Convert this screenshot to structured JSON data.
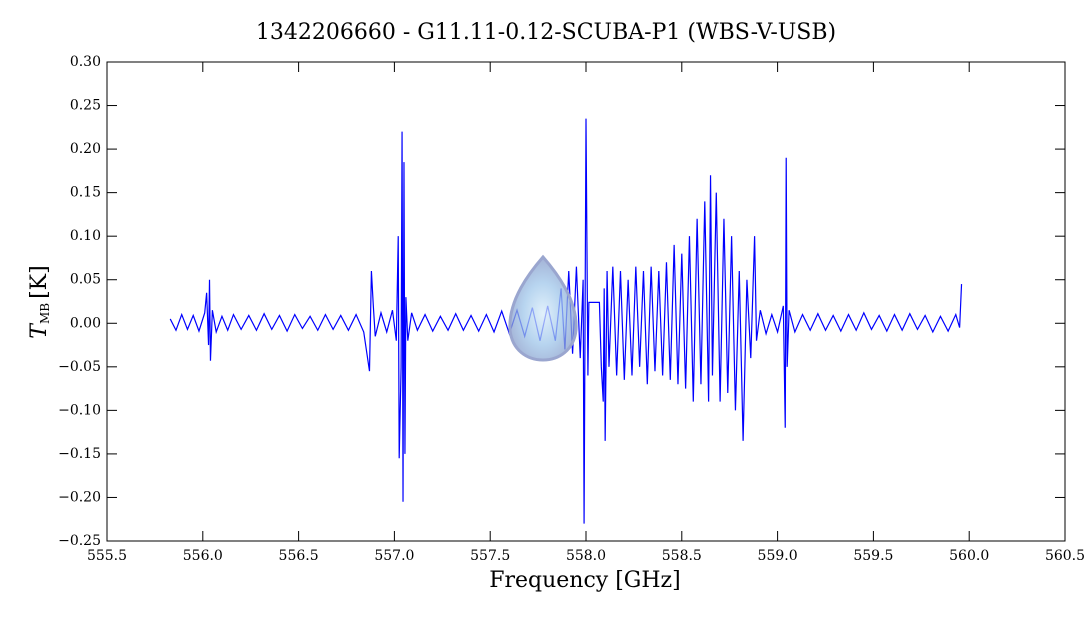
{
  "chart_data": {
    "type": "line",
    "title": "1342206660 - G11.11-0.12-SCUBA-P1 (WBS-V-USB)",
    "xlabel": "Frequency [GHz]",
    "ylabel": {
      "symbol": "T",
      "subscript": "MB",
      "unit": "[K]"
    },
    "color": "#0000ff",
    "xlim": [
      555.5,
      560.5
    ],
    "ylim": [
      -0.25,
      0.3
    ],
    "xticks": [
      555.5,
      {
        "value": 556,
        "label": "556.0"
      },
      556.5,
      {
        "value": 557,
        "label": "557.0"
      },
      557.5,
      {
        "value": 558,
        "label": "558.0"
      },
      558.5,
      {
        "value": 559,
        "label": "559.0"
      },
      559.5,
      {
        "value": 560,
        "label": "560.0"
      },
      560.5
    ],
    "yticks": [
      {
        "value": -0.25,
        "label": "−0.25"
      },
      {
        "value": -0.2,
        "label": "−0.20"
      },
      {
        "value": -0.15,
        "label": "−0.15"
      },
      {
        "value": -0.1,
        "label": "−0.10"
      },
      {
        "value": -0.05,
        "label": "−0.05"
      },
      {
        "value": 0,
        "label": "0.00"
      },
      0.05,
      {
        "value": 0.1,
        "label": "0.10"
      },
      0.15,
      {
        "value": 0.2,
        "label": "0.20"
      },
      0.25,
      {
        "value": 0.3,
        "label": "0.30"
      }
    ],
    "x": [
      555.83,
      555.86,
      555.89,
      555.92,
      555.95,
      555.98,
      556.01,
      556.02,
      556.03,
      556.035,
      556.04,
      556.05,
      556.07,
      556.1,
      556.13,
      556.16,
      556.2,
      556.24,
      556.28,
      556.32,
      556.36,
      556.4,
      556.44,
      556.48,
      556.52,
      556.56,
      556.6,
      556.64,
      556.68,
      556.72,
      556.76,
      556.8,
      556.84,
      556.87,
      556.88,
      556.89,
      556.9,
      556.93,
      556.96,
      556.99,
      557.01,
      557.02,
      557.025,
      557.035,
      557.04,
      557.045,
      557.05,
      557.055,
      557.06,
      557.07,
      557.09,
      557.12,
      557.16,
      557.2,
      557.24,
      557.28,
      557.32,
      557.36,
      557.4,
      557.44,
      557.48,
      557.52,
      557.56,
      557.6,
      557.64,
      557.68,
      557.72,
      557.76,
      557.8,
      557.84,
      557.87,
      557.89,
      557.91,
      557.93,
      557.95,
      557.97,
      557.985,
      557.99,
      558.0,
      558.01,
      558.015,
      558.07,
      558.08,
      558.09,
      558.095,
      558.1,
      558.11,
      558.12,
      558.14,
      558.16,
      558.18,
      558.2,
      558.22,
      558.24,
      558.26,
      558.28,
      558.3,
      558.32,
      558.34,
      558.36,
      558.38,
      558.4,
      558.42,
      558.44,
      558.46,
      558.48,
      558.5,
      558.52,
      558.54,
      558.56,
      558.58,
      558.6,
      558.62,
      558.64,
      558.65,
      558.66,
      558.68,
      558.7,
      558.72,
      558.74,
      558.76,
      558.78,
      558.8,
      558.82,
      558.84,
      558.86,
      558.88,
      558.89,
      558.91,
      558.94,
      558.97,
      559.0,
      559.03,
      559.04,
      559.045,
      559.05,
      559.06,
      559.09,
      559.13,
      559.17,
      559.21,
      559.25,
      559.29,
      559.33,
      559.37,
      559.41,
      559.45,
      559.49,
      559.53,
      559.57,
      559.61,
      559.65,
      559.69,
      559.73,
      559.77,
      559.81,
      559.85,
      559.89,
      559.93,
      559.95,
      559.96
    ],
    "values": [
      0.005,
      -0.008,
      0.01,
      -0.007,
      0.009,
      -0.009,
      0.012,
      0.035,
      -0.025,
      0.05,
      -0.043,
      0.015,
      -0.01,
      0.008,
      -0.008,
      0.01,
      -0.007,
      0.009,
      -0.008,
      0.011,
      -0.007,
      0.009,
      -0.009,
      0.01,
      -0.006,
      0.008,
      -0.008,
      0.01,
      -0.007,
      0.009,
      -0.008,
      0.01,
      -0.01,
      -0.055,
      0.06,
      0.02,
      -0.015,
      0.012,
      -0.01,
      0.015,
      -0.02,
      0.1,
      -0.155,
      -0.05,
      0.22,
      -0.205,
      0.185,
      -0.15,
      0.03,
      -0.02,
      0.012,
      -0.008,
      0.01,
      -0.009,
      0.008,
      -0.008,
      0.011,
      -0.008,
      0.009,
      -0.009,
      0.01,
      -0.01,
      0.014,
      -0.012,
      0.015,
      -0.015,
      0.018,
      -0.02,
      0.02,
      -0.02,
      0.04,
      -0.03,
      0.06,
      -0.035,
      0.065,
      -0.04,
      0.05,
      -0.23,
      0.235,
      -0.06,
      0.024,
      0.024,
      -0.05,
      -0.09,
      0.04,
      -0.135,
      0.06,
      -0.05,
      0.065,
      -0.06,
      0.06,
      -0.065,
      0.05,
      -0.06,
      0.065,
      -0.05,
      0.06,
      -0.07,
      0.065,
      -0.055,
      0.06,
      -0.06,
      0.07,
      -0.065,
      0.09,
      -0.07,
      0.08,
      -0.075,
      0.1,
      -0.09,
      0.12,
      -0.07,
      0.14,
      -0.09,
      0.17,
      -0.06,
      0.15,
      -0.09,
      0.12,
      -0.08,
      0.1,
      -0.1,
      0.06,
      -0.135,
      0.05,
      -0.04,
      0.1,
      -0.02,
      0.015,
      -0.012,
      0.01,
      -0.01,
      0.02,
      -0.12,
      0.19,
      -0.05,
      0.015,
      -0.01,
      0.01,
      -0.008,
      0.011,
      -0.008,
      0.009,
      -0.009,
      0.01,
      -0.008,
      0.012,
      -0.007,
      0.009,
      -0.009,
      0.01,
      -0.008,
      0.011,
      -0.007,
      0.009,
      -0.01,
      0.008,
      -0.009,
      0.01,
      -0.005,
      0.045
    ]
  }
}
